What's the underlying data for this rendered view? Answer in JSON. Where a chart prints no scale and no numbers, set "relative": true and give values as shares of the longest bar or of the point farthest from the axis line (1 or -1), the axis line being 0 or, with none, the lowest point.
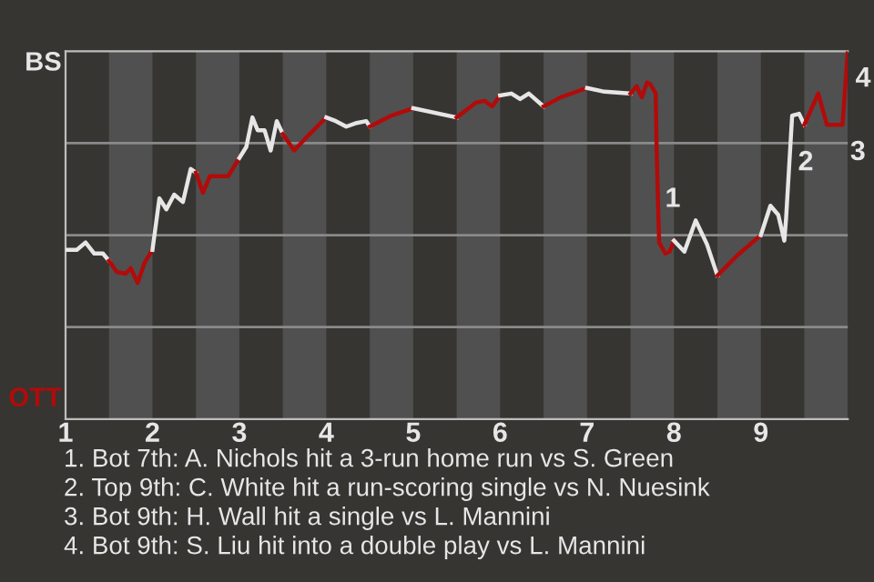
{
  "chart_data": {
    "type": "line",
    "relative": true,
    "series": [
      {
        "color": "#e6e6e6",
        "x": [
          1.01,
          1.13,
          1.23,
          1.33,
          1.43,
          1.5
        ],
        "values": [
          0.46,
          0.46,
          0.48,
          0.45,
          0.45,
          0.43
        ]
      },
      {
        "color": "#b30a0a",
        "x": [
          1.5,
          1.59,
          1.69,
          1.75,
          1.83,
          1.91,
          2
        ],
        "values": [
          0.43,
          0.4,
          0.395,
          0.41,
          0.37,
          0.425,
          0.46
        ]
      },
      {
        "color": "#e6e6e6",
        "x": [
          2,
          2.08,
          2.16,
          2.25,
          2.35,
          2.44,
          2.5
        ],
        "values": [
          0.46,
          0.6,
          0.57,
          0.61,
          0.59,
          0.68,
          0.67
        ]
      },
      {
        "color": "#b30a0a",
        "x": [
          2.5,
          2.58,
          2.66,
          2.87,
          3
        ],
        "values": [
          0.67,
          0.615,
          0.66,
          0.66,
          0.71
        ]
      },
      {
        "color": "#e6e6e6",
        "x": [
          3,
          3.08,
          3.15,
          3.21,
          3.29,
          3.36,
          3.43,
          3.5
        ],
        "values": [
          0.71,
          0.74,
          0.82,
          0.785,
          0.785,
          0.73,
          0.81,
          0.775
        ]
      },
      {
        "color": "#b30a0a",
        "x": [
          3.5,
          3.63,
          3.81,
          4
        ],
        "values": [
          0.775,
          0.73,
          0.775,
          0.82
        ]
      },
      {
        "color": "#e6e6e6",
        "x": [
          4,
          4.11,
          4.23,
          4.35,
          4.46,
          4.5
        ],
        "values": [
          0.82,
          0.81,
          0.795,
          0.805,
          0.81,
          0.795
        ]
      },
      {
        "color": "#b30a0a",
        "x": [
          4.5,
          4.75,
          5
        ],
        "values": [
          0.795,
          0.825,
          0.845
        ]
      },
      {
        "color": "#e6e6e6",
        "x": [
          5,
          5.5
        ],
        "values": [
          0.845,
          0.82
        ]
      },
      {
        "color": "#b30a0a",
        "x": [
          5.5,
          5.72,
          5.82,
          5.91,
          6
        ],
        "values": [
          0.82,
          0.86,
          0.865,
          0.85,
          0.88
        ]
      },
      {
        "color": "#e6e6e6",
        "x": [
          6,
          6.13,
          6.23,
          6.33,
          6.5
        ],
        "values": [
          0.88,
          0.885,
          0.87,
          0.885,
          0.85
        ]
      },
      {
        "color": "#b30a0a",
        "x": [
          6.5,
          6.7,
          7
        ],
        "values": [
          0.85,
          0.875,
          0.9
        ]
      },
      {
        "color": "#e6e6e6",
        "x": [
          7,
          7.2,
          7.5
        ],
        "values": [
          0.9,
          0.89,
          0.885
        ]
      },
      {
        "color": "#b30a0a",
        "x": [
          7.5,
          7.57,
          7.63,
          7.69,
          7.73,
          7.79,
          7.8,
          7.81,
          7.83,
          7.9,
          7.95,
          8
        ],
        "values": [
          0.885,
          0.905,
          0.875,
          0.915,
          0.91,
          0.885,
          0.745,
          0.645,
          0.48,
          0.45,
          0.455,
          0.485
        ]
      },
      {
        "color": "#e6e6e6",
        "x": [
          8,
          8.12,
          8.25,
          8.38,
          8.5
        ],
        "values": [
          0.485,
          0.455,
          0.54,
          0.475,
          0.39
        ]
      },
      {
        "color": "#b30a0a",
        "x": [
          8.5,
          8.73,
          9
        ],
        "values": [
          0.39,
          0.445,
          0.5
        ]
      },
      {
        "color": "#e6e6e6",
        "x": [
          9,
          9.11,
          9.2,
          9.27,
          9.29,
          9.34,
          9.36,
          9.44,
          9.5
        ],
        "values": [
          0.5,
          0.58,
          0.555,
          0.485,
          0.545,
          0.745,
          0.825,
          0.83,
          0.8
        ]
      },
      {
        "color": "#b30a0a",
        "x": [
          9.5,
          9.66,
          9.76,
          9.94,
          10
        ],
        "values": [
          0.8,
          0.885,
          0.8,
          0.8,
          1.0
        ]
      }
    ],
    "xlim": [
      1,
      10
    ],
    "xticks": [
      1,
      2,
      3,
      4,
      5,
      6,
      7,
      8,
      9
    ],
    "legend": false,
    "marker": "none",
    "line_style": "solid",
    "ref_lines": [
      {
        "axis": "y",
        "value": 0.25,
        "color": "#8a8a8a"
      },
      {
        "axis": "y",
        "value": 0.5,
        "color": "#8a8a8a"
      },
      {
        "axis": "y",
        "value": 0.75,
        "color": "#8a8a8a"
      }
    ],
    "bands": [
      {
        "axis": "x",
        "from": 1.5,
        "to": 2,
        "color": "#505050"
      },
      {
        "axis": "x",
        "from": 2.5,
        "to": 3,
        "color": "#505050"
      },
      {
        "axis": "x",
        "from": 3.5,
        "to": 4,
        "color": "#505050"
      },
      {
        "axis": "x",
        "from": 4.5,
        "to": 5,
        "color": "#505050"
      },
      {
        "axis": "x",
        "from": 5.5,
        "to": 6,
        "color": "#505050"
      },
      {
        "axis": "x",
        "from": 6.5,
        "to": 7,
        "color": "#505050"
      },
      {
        "axis": "x",
        "from": 7.5,
        "to": 8,
        "color": "#505050"
      },
      {
        "axis": "x",
        "from": 8.5,
        "to": 9,
        "color": "#505050"
      },
      {
        "axis": "x",
        "from": 9.5,
        "to": 10,
        "color": "#505050"
      }
    ],
    "annotations": [
      "BS",
      "OTT",
      {
        "text": "1",
        "x": 7.81,
        "y": 0.645
      },
      {
        "text": "2",
        "x": 9.34,
        "y": 0.745
      },
      {
        "text": "3",
        "x": 9.94,
        "y": 0.8
      },
      {
        "text": "4",
        "x": 10,
        "y": 1.0
      },
      "1. Bot 7th: A. Nichols hit a 3-run home run vs S. Green",
      "2. Top 9th: C. White hit a run-scoring single vs N. Nuesink",
      "3. Bot 9th: H. Wall hit a single vs L. Mannini",
      "4. Bot 9th: S. Liu hit into a double play vs L. Mannini"
    ]
  }
}
